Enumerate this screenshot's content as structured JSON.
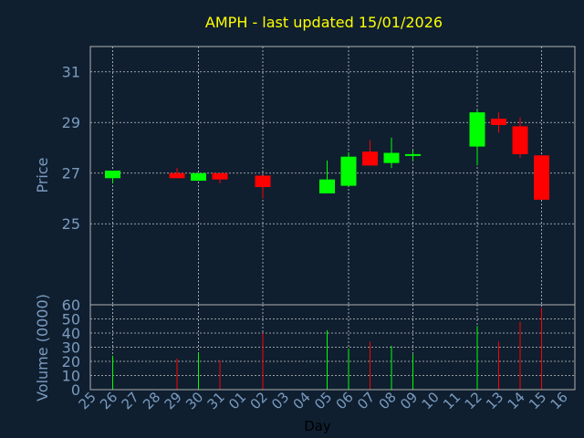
{
  "colors": {
    "background": "#0f1f30",
    "title": "#ffff00",
    "axis_text": "#7b9bbf",
    "frame": "#b0b0b0",
    "grid": "#c8c8c8",
    "up": "#00ff00",
    "down": "#ff0000",
    "xlabel_text": "#000000"
  },
  "chart_data": [
    {
      "type": "candlestick",
      "title": "AMPH - last updated 15/01/2026",
      "ylabel": "Price",
      "ylim": [
        21.8,
        32.0
      ],
      "y_ticks": [
        "25",
        "27",
        "29",
        "31"
      ],
      "grid": true,
      "x_ticks": [
        "25",
        "26",
        "27",
        "28",
        "29",
        "30",
        "31",
        "01",
        "02",
        "03",
        "04",
        "05",
        "06",
        "07",
        "08",
        "09",
        "10",
        "11",
        "12",
        "13",
        "14",
        "15",
        "16"
      ],
      "candles": [
        {
          "day": "26",
          "open": 26.8,
          "high": 27.1,
          "low": 26.6,
          "close": 27.1
        },
        {
          "day": "29",
          "open": 27.0,
          "high": 27.2,
          "low": 26.8,
          "close": 26.8
        },
        {
          "day": "30",
          "open": 26.7,
          "high": 27.0,
          "low": 26.7,
          "close": 27.0
        },
        {
          "day": "31",
          "open": 27.0,
          "high": 27.0,
          "low": 26.6,
          "close": 26.75
        },
        {
          "day": "02",
          "open": 26.9,
          "high": 26.9,
          "low": 26.0,
          "close": 26.45
        },
        {
          "day": "05",
          "open": 26.2,
          "high": 27.5,
          "low": 26.2,
          "close": 26.75
        },
        {
          "day": "06",
          "open": 26.5,
          "high": 27.8,
          "low": 26.5,
          "close": 27.65
        },
        {
          "day": "07",
          "open": 27.85,
          "high": 28.3,
          "low": 27.3,
          "close": 27.3
        },
        {
          "day": "08",
          "open": 27.4,
          "high": 28.4,
          "low": 27.2,
          "close": 27.8
        },
        {
          "day": "09",
          "open": 27.75,
          "high": 27.9,
          "low": 27.5,
          "close": 27.75
        },
        {
          "day": "12",
          "open": 28.05,
          "high": 29.5,
          "low": 27.3,
          "close": 29.4
        },
        {
          "day": "13",
          "open": 29.15,
          "high": 29.4,
          "low": 28.6,
          "close": 28.9
        },
        {
          "day": "14",
          "open": 28.85,
          "high": 29.2,
          "low": 27.6,
          "close": 27.75
        },
        {
          "day": "15",
          "open": 27.7,
          "high": 27.7,
          "low": 25.95,
          "close": 25.95
        }
      ]
    },
    {
      "type": "bar",
      "ylabel": "Volume (0000)",
      "xlabel": "Day",
      "ylim": [
        0,
        60
      ],
      "y_ticks": [
        "0",
        "10",
        "20",
        "30",
        "40",
        "50",
        "60"
      ],
      "grid": true,
      "bars": [
        {
          "day": "26",
          "value": 24,
          "direction": "up"
        },
        {
          "day": "29",
          "value": 22,
          "direction": "down"
        },
        {
          "day": "30",
          "value": 26,
          "direction": "up"
        },
        {
          "day": "31",
          "value": 21,
          "direction": "down"
        },
        {
          "day": "02",
          "value": 40,
          "direction": "down"
        },
        {
          "day": "05",
          "value": 42,
          "direction": "up"
        },
        {
          "day": "06",
          "value": 29,
          "direction": "up"
        },
        {
          "day": "07",
          "value": 34,
          "direction": "down"
        },
        {
          "day": "08",
          "value": 31,
          "direction": "up"
        },
        {
          "day": "09",
          "value": 25,
          "direction": "up"
        },
        {
          "day": "12",
          "value": 45,
          "direction": "up"
        },
        {
          "day": "13",
          "value": 34,
          "direction": "down"
        },
        {
          "day": "14",
          "value": 48,
          "direction": "down"
        },
        {
          "day": "15",
          "value": 58,
          "direction": "down"
        }
      ]
    }
  ]
}
